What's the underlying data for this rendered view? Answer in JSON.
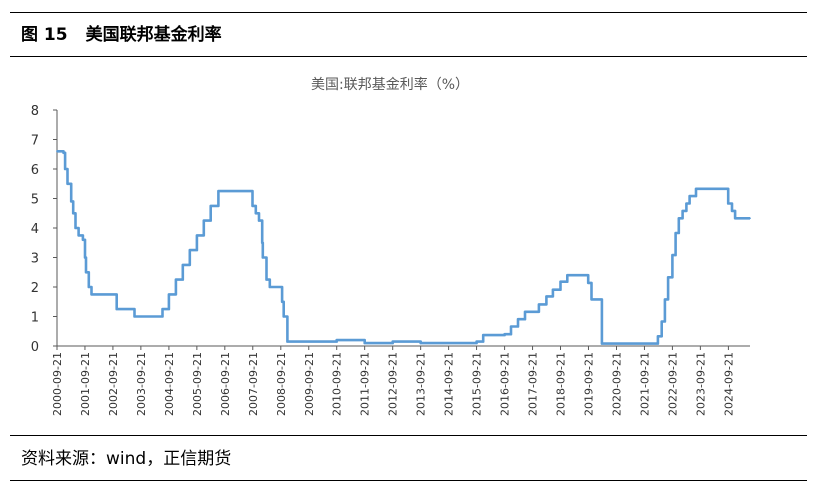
{
  "figure": {
    "number": "图 15",
    "title": "美国联邦基金利率",
    "source": "资料来源：wind，正信期货"
  },
  "colors": {
    "line": "#5b9bd5",
    "axis": "#595959",
    "rule": "#000000"
  },
  "chart_data": {
    "type": "line",
    "title": "美国:联邦基金利率（%）",
    "xlabel": "",
    "ylabel": "",
    "ylim": [
      0,
      8
    ],
    "yticks": [
      "0",
      "1",
      "2",
      "3",
      "4",
      "5",
      "6",
      "7",
      "8"
    ],
    "xticks": [
      "2000-09-21",
      "2001-09-21",
      "2002-09-21",
      "2003-09-21",
      "2004-09-21",
      "2005-09-21",
      "2006-09-21",
      "2007-09-21",
      "2008-09-21",
      "2009-09-21",
      "2010-09-21",
      "2011-09-21",
      "2012-09-21",
      "2013-09-21",
      "2014-09-21",
      "2015-09-21",
      "2016-09-21",
      "2017-09-21",
      "2018-09-21",
      "2019-09-21",
      "2020-09-21",
      "2021-09-21",
      "2022-09-21",
      "2023-09-21",
      "2024-09-21"
    ],
    "grid": false,
    "legend": "none",
    "series": [
      {
        "name": "美国:联邦基金利率",
        "x": [
          "2000-09-21",
          "2000-12-15",
          "2001-01-05",
          "2001-02-05",
          "2001-03-25",
          "2001-04-20",
          "2001-05-20",
          "2001-06-30",
          "2001-08-25",
          "2001-09-21",
          "2001-10-05",
          "2001-11-10",
          "2001-12-15",
          "2002-03-01",
          "2002-09-21",
          "2002-11-10",
          "2003-06-30",
          "2003-09-21",
          "2004-06-30",
          "2004-09-21",
          "2004-12-21",
          "2005-03-21",
          "2005-06-21",
          "2005-09-21",
          "2005-12-21",
          "2006-03-21",
          "2006-06-29",
          "2006-09-21",
          "2007-08-20",
          "2007-09-18",
          "2007-10-31",
          "2007-12-11",
          "2008-01-22",
          "2008-01-30",
          "2008-03-18",
          "2008-04-30",
          "2008-09-15",
          "2008-09-21",
          "2008-10-08",
          "2008-10-29",
          "2008-12-16",
          "2009-09-21",
          "2010-09-21",
          "2011-09-21",
          "2012-09-21",
          "2013-09-21",
          "2014-09-21",
          "2015-09-21",
          "2015-12-16",
          "2016-09-21",
          "2016-12-14",
          "2017-03-15",
          "2017-06-14",
          "2017-09-21",
          "2017-12-13",
          "2018-03-21",
          "2018-06-13",
          "2018-09-21",
          "2018-12-19",
          "2019-07-31",
          "2019-09-18",
          "2019-10-30",
          "2020-03-03",
          "2020-03-15",
          "2020-09-21",
          "2021-09-21",
          "2022-03-16",
          "2022-05-04",
          "2022-06-15",
          "2022-07-27",
          "2022-09-21",
          "2022-11-02",
          "2022-12-14",
          "2023-02-01",
          "2023-03-22",
          "2023-05-03",
          "2023-07-26",
          "2023-09-21",
          "2024-09-18",
          "2024-11-07",
          "2024-12-18",
          "2025-06-30"
        ],
        "values": [
          6.6,
          6.55,
          6.0,
          5.5,
          4.9,
          4.5,
          4.0,
          3.75,
          3.6,
          3.0,
          2.5,
          2.0,
          1.75,
          1.75,
          1.75,
          1.25,
          1.0,
          1.0,
          1.25,
          1.75,
          2.25,
          2.75,
          3.25,
          3.75,
          4.25,
          4.75,
          5.25,
          5.25,
          5.25,
          4.75,
          4.5,
          4.25,
          3.5,
          3.0,
          2.25,
          2.0,
          2.0,
          2.0,
          1.5,
          1.0,
          0.15,
          0.15,
          0.2,
          0.1,
          0.15,
          0.1,
          0.1,
          0.15,
          0.37,
          0.4,
          0.66,
          0.91,
          1.16,
          1.16,
          1.41,
          1.68,
          1.91,
          2.18,
          2.4,
          2.4,
          2.14,
          1.58,
          1.58,
          0.08,
          0.08,
          0.08,
          0.33,
          0.83,
          1.58,
          2.33,
          3.08,
          3.83,
          4.33,
          4.58,
          4.83,
          5.08,
          5.33,
          5.33,
          4.83,
          4.58,
          4.33,
          4.33
        ]
      }
    ]
  }
}
